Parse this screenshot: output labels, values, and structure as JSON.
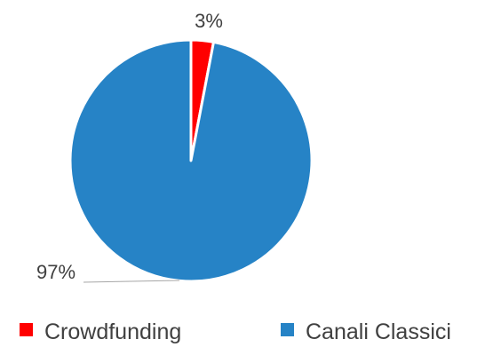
{
  "chart_data": {
    "type": "pie",
    "title": "",
    "categories": [
      "Crowdfunding",
      "Canali Classici"
    ],
    "values": [
      3,
      97
    ],
    "data_labels": [
      "3%",
      "97%"
    ],
    "colors": [
      "#ff0000",
      "#2683c6"
    ],
    "legend": {
      "placement": "bottom",
      "entries": [
        "Crowdfunding",
        "Canali Classici"
      ]
    },
    "start_angle_deg": 0,
    "direction": "clockwise"
  }
}
